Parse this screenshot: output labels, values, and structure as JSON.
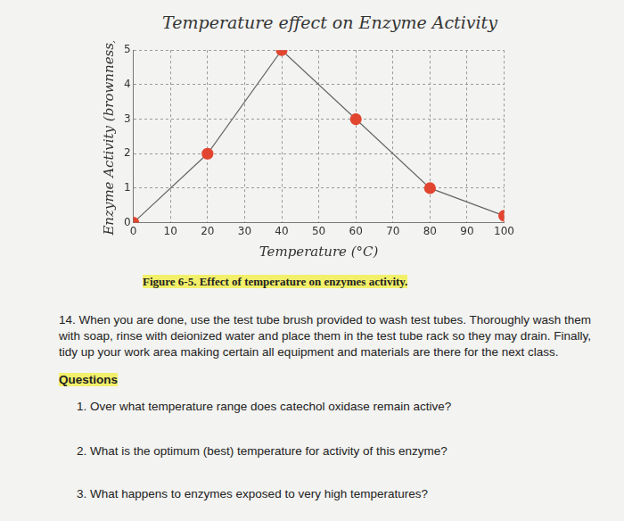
{
  "chart_data": {
    "type": "line",
    "title": "Temperature effect on Enzyme Activity",
    "x_label": "Temperature (°C)",
    "y_label": "Enzyme Activity (brownness)",
    "x": [
      0,
      20,
      40,
      60,
      80,
      100
    ],
    "values": [
      0,
      2,
      5,
      3,
      1,
      0.2
    ],
    "color": "#e2452f",
    "marker": "circle",
    "xlim": [
      0,
      100
    ],
    "xticks": [
      0,
      10,
      20,
      30,
      40,
      50,
      60,
      70,
      80,
      90,
      100
    ],
    "ylim": [
      0,
      5
    ],
    "yticks": [
      0,
      1,
      2,
      3,
      4,
      5
    ],
    "grid": true
  },
  "caption": "Figure 6-5. Effect of temperature on enzymes activity.",
  "step": {
    "number": "14.",
    "text": "When you are done, use the test tube brush provided to wash test tubes. Thoroughly wash them with soap, rinse with deionized water and place them in the test tube rack so they may drain. Finally, tidy up your work area making certain all equipment and materials are there for the next class."
  },
  "questions_heading": "Questions",
  "questions": [
    {
      "number": "1.",
      "text": "Over what temperature range does catechol oxidase remain active?"
    },
    {
      "number": "2.",
      "text": "What is the optimum (best) temperature for activity of this enzyme?"
    },
    {
      "number": "3.",
      "text": "What happens to enzymes exposed to very high temperatures?"
    }
  ]
}
